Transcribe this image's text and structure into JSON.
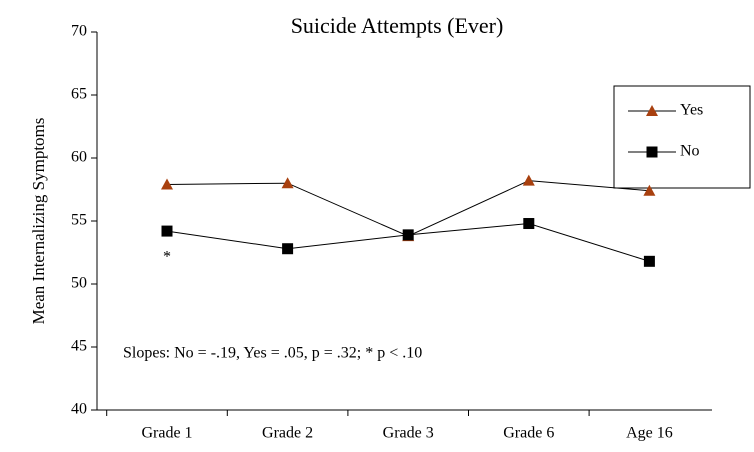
{
  "chart_data": {
    "type": "line",
    "title": "Suicide Attempts (Ever)",
    "y_label": "Mean Internalizing Symptoms",
    "categories": [
      "Grade 1",
      "Grade 2",
      "Grade 3",
      "Grade 6",
      "Age 16"
    ],
    "series": [
      {
        "name": "Yes",
        "color": "#a8400f",
        "marker": "triangle",
        "values": [
          57.9,
          58.0,
          53.8,
          58.2,
          57.4
        ]
      },
      {
        "name": "No",
        "color": "#000000",
        "marker": "square",
        "values": [
          54.2,
          52.8,
          53.9,
          54.8,
          51.8
        ]
      }
    ],
    "ylim": [
      40,
      70
    ],
    "yticks": [
      40,
      45,
      50,
      55,
      60,
      65,
      70
    ],
    "annotations": [
      "*",
      "Slopes:  No = -.19, Yes = .05,   p = .32; * p < .10"
    ],
    "legend": "right"
  }
}
